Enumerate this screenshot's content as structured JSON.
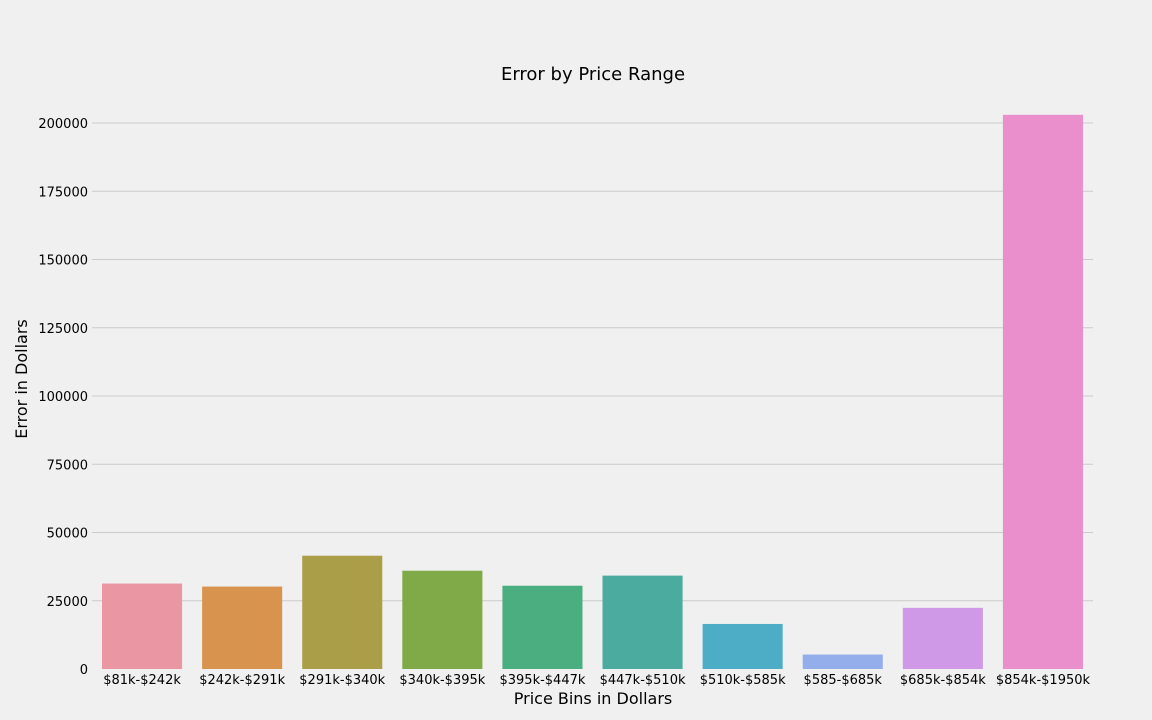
{
  "chart_data": {
    "type": "bar",
    "title": "Error by Price Range",
    "xlabel": "Price Bins in Dollars",
    "ylabel": "Error in Dollars",
    "categories": [
      "$81k-$242k",
      "$242k-$291k",
      "$291k-$340k",
      "$340k-$395k",
      "$395k-$447k",
      "$447k-$510k",
      "$510k-$585k",
      "$585-$685k",
      "$685k-$854k",
      "$854k-$1950k"
    ],
    "values": [
      31300,
      30200,
      41500,
      36000,
      30500,
      34200,
      16500,
      5300,
      22400,
      203000
    ],
    "colors": [
      "#ea96a3",
      "#d8944e",
      "#aa9e48",
      "#7faa47",
      "#4bae80",
      "#4bab9f",
      "#4eadc6",
      "#94aeeb",
      "#cf99e8",
      "#eb8fcc"
    ],
    "ylim": [
      0,
      210000
    ],
    "yticks": [
      0,
      25000,
      50000,
      75000,
      100000,
      125000,
      150000,
      175000,
      200000
    ],
    "grid": "y-axis"
  }
}
